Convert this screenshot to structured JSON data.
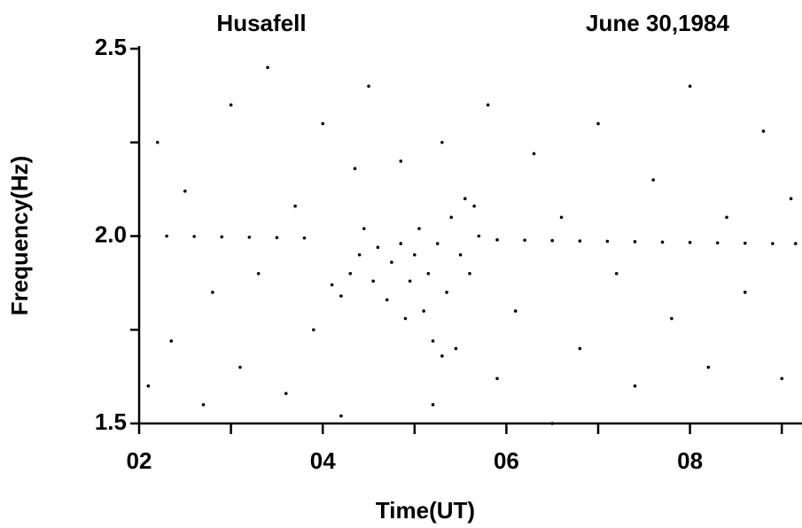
{
  "chart_data": {
    "type": "scatter",
    "title": "Husafell",
    "subtitle": "June 30,1984",
    "x_label": "Time(UT)",
    "y_label": "Frequency(Hz)",
    "xlim": [
      2,
      9.22
    ],
    "ylim": [
      1.5,
      2.5
    ],
    "xticks": [
      {
        "value": 2,
        "label": "02"
      },
      {
        "value": 4,
        "label": "04"
      },
      {
        "value": 6,
        "label": "06"
      },
      {
        "value": 8,
        "label": "08"
      }
    ],
    "xminor_ticks": [
      3,
      5,
      7,
      9
    ],
    "yticks": [
      1.5,
      {
        "value": 2,
        "label": "2.0"
      },
      2.5
    ],
    "yminor_ticks": [
      1.75,
      2.25
    ],
    "grid": false,
    "series": [
      {
        "color": "#000000",
        "x": [
          2.0,
          2.3,
          2.6,
          2.9,
          3.2,
          3.5,
          3.8,
          5.9,
          6.2,
          6.5,
          6.8,
          7.1,
          7.4,
          7.7,
          8.0,
          8.3,
          8.6,
          8.9,
          9.15,
          4.1,
          4.2,
          4.3,
          4.4,
          4.45,
          4.55,
          4.6,
          4.7,
          4.75,
          4.85,
          4.9,
          4.95,
          5.0,
          5.05,
          5.1,
          5.15,
          5.2,
          5.25,
          5.3,
          5.35,
          5.4,
          5.45,
          5.5,
          5.55,
          5.6,
          5.65,
          5.7,
          4.85,
          5.3,
          4.35,
          2.1,
          2.2,
          2.35,
          2.5,
          2.7,
          2.8,
          3.0,
          3.1,
          3.3,
          3.4,
          3.6,
          3.7,
          3.9,
          4.0,
          4.2,
          4.5,
          5.2,
          5.8,
          5.9,
          6.1,
          6.3,
          6.5,
          6.6,
          6.8,
          7.0,
          7.2,
          7.4,
          7.6,
          7.8,
          8.0,
          8.2,
          8.4,
          8.6,
          8.8,
          9.0,
          9.1
        ],
        "values": [
          2.0,
          2.0,
          1.999,
          1.998,
          1.997,
          1.996,
          1.995,
          1.99,
          1.989,
          1.988,
          1.987,
          1.986,
          1.985,
          1.984,
          1.983,
          1.982,
          1.981,
          1.98,
          1.98,
          1.87,
          1.84,
          1.9,
          1.95,
          2.02,
          1.88,
          1.97,
          1.83,
          1.93,
          1.98,
          1.78,
          1.88,
          1.95,
          2.02,
          1.8,
          1.9,
          1.72,
          1.98,
          1.68,
          1.85,
          2.05,
          1.7,
          1.95,
          2.1,
          1.9,
          2.08,
          2.0,
          2.2,
          2.25,
          2.18,
          1.6,
          2.25,
          1.72,
          2.12,
          1.55,
          1.85,
          2.35,
          1.65,
          1.9,
          2.45,
          1.58,
          2.08,
          1.75,
          2.3,
          1.52,
          2.4,
          1.55,
          2.35,
          1.62,
          1.8,
          2.22,
          1.5,
          2.05,
          1.7,
          2.3,
          1.9,
          1.6,
          2.15,
          1.78,
          2.4,
          1.65,
          2.05,
          1.85,
          2.28,
          1.62,
          2.1
        ]
      }
    ]
  }
}
